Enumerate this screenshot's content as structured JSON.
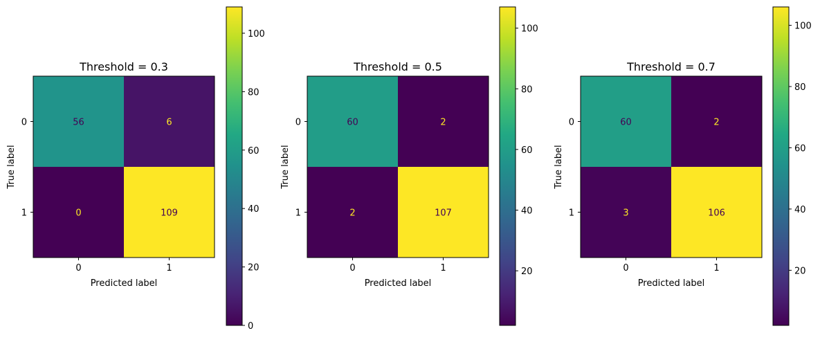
{
  "chart_data": [
    {
      "type": "heatmap",
      "title": "Threshold = 0.3",
      "xlabel": "Predicted label",
      "ylabel": "True label",
      "x_categories": [
        "0",
        "1"
      ],
      "y_categories": [
        "0",
        "1"
      ],
      "matrix": [
        [
          56,
          6
        ],
        [
          0,
          109
        ]
      ],
      "colorbar": {
        "min": 0,
        "max": 109,
        "ticks": [
          0,
          20,
          40,
          60,
          80,
          100
        ],
        "colormap": "viridis"
      }
    },
    {
      "type": "heatmap",
      "title": "Threshold = 0.5",
      "xlabel": "Predicted label",
      "ylabel": "True label",
      "x_categories": [
        "0",
        "1"
      ],
      "y_categories": [
        "0",
        "1"
      ],
      "matrix": [
        [
          60,
          2
        ],
        [
          2,
          107
        ]
      ],
      "colorbar": {
        "min": 2,
        "max": 107,
        "ticks": [
          20,
          40,
          60,
          80,
          100
        ],
        "colormap": "viridis"
      }
    },
    {
      "type": "heatmap",
      "title": "Threshold = 0.7",
      "xlabel": "Predicted label",
      "ylabel": "True label",
      "x_categories": [
        "0",
        "1"
      ],
      "y_categories": [
        "0",
        "1"
      ],
      "matrix": [
        [
          60,
          2
        ],
        [
          3,
          106
        ]
      ],
      "colorbar": {
        "min": 2,
        "max": 106,
        "ticks": [
          20,
          40,
          60,
          80,
          100
        ],
        "colormap": "viridis"
      }
    }
  ]
}
